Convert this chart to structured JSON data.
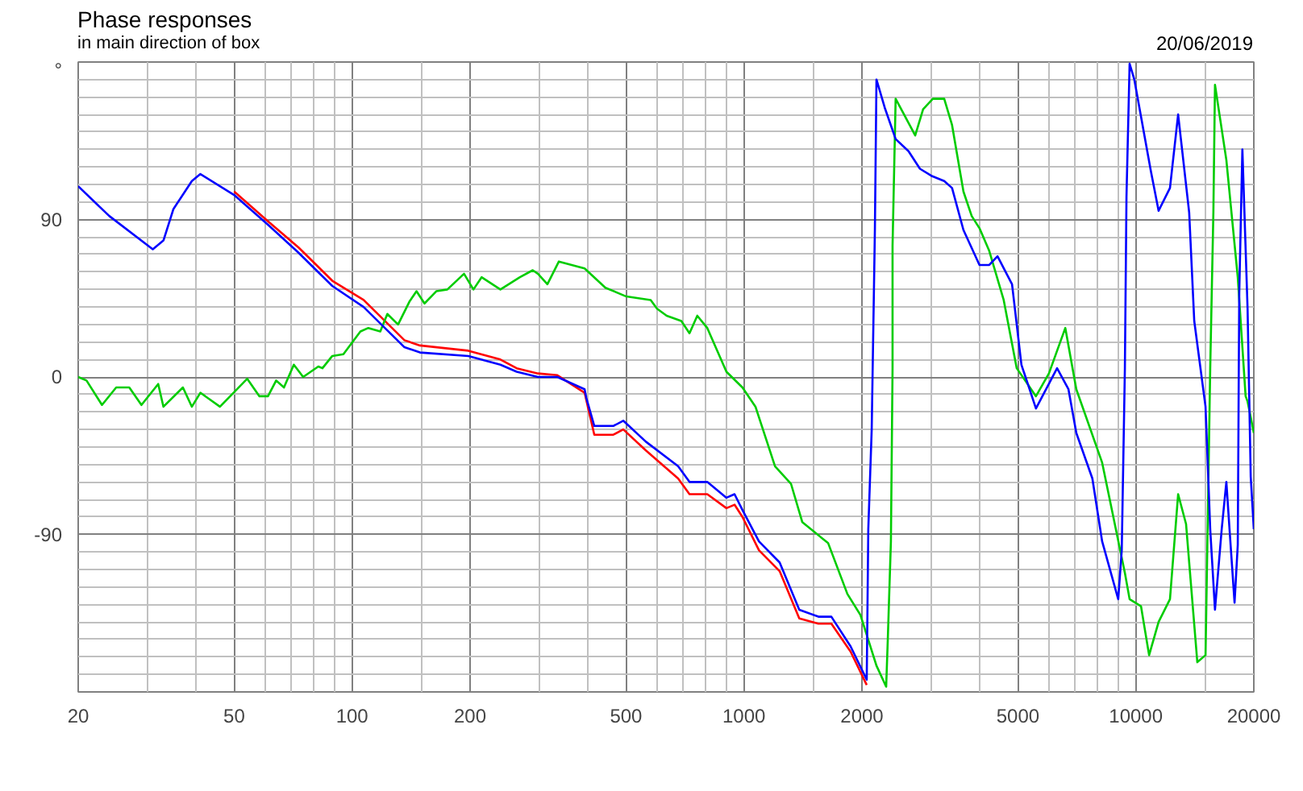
{
  "chart_data": {
    "type": "line",
    "title": "Phase responses",
    "subtitle": "in main direction of box",
    "annotations": [
      "20/06/2019"
    ],
    "xlim": [
      20,
      20000
    ],
    "ylim": [
      -180,
      180
    ],
    "xticks": [
      20,
      {
        "value": 30,
        "label": null
      },
      {
        "value": 40,
        "label": null
      },
      50,
      {
        "value": 60,
        "label": null
      },
      {
        "value": 70,
        "label": null
      },
      {
        "value": 80,
        "label": null
      },
      {
        "value": 90,
        "label": null
      },
      100,
      {
        "value": 150,
        "label": null
      },
      200,
      {
        "value": 300,
        "label": null
      },
      {
        "value": 400,
        "label": null
      },
      500,
      {
        "value": 600,
        "label": null
      },
      {
        "value": 700,
        "label": null
      },
      {
        "value": 800,
        "label": null
      },
      {
        "value": 900,
        "label": null
      },
      1000,
      {
        "value": 1500,
        "label": null
      },
      2000,
      {
        "value": 3000,
        "label": null
      },
      {
        "value": 4000,
        "label": null
      },
      5000,
      {
        "value": 6000,
        "label": null
      },
      {
        "value": 7000,
        "label": null
      },
      {
        "value": 8000,
        "label": null
      },
      {
        "value": 9000,
        "label": null
      },
      10000,
      {
        "value": 15000,
        "label": null
      },
      20000
    ],
    "yticks": [
      {
        "value": -180,
        "label": null
      },
      {
        "value": -170,
        "label": null
      },
      {
        "value": -160,
        "label": null
      },
      {
        "value": -150,
        "label": null
      },
      {
        "value": -140,
        "label": null
      },
      {
        "value": -130,
        "label": null
      },
      {
        "value": -120,
        "label": null
      },
      {
        "value": -110,
        "label": null
      },
      {
        "value": -100,
        "label": null
      },
      -90,
      {
        "value": -80,
        "label": null
      },
      {
        "value": -70,
        "label": null
      },
      {
        "value": -60,
        "label": null
      },
      {
        "value": -50,
        "label": null
      },
      {
        "value": -40,
        "label": null
      },
      {
        "value": -30,
        "label": null
      },
      {
        "value": -20,
        "label": null
      },
      {
        "value": -10,
        "label": null
      },
      0,
      {
        "value": 10,
        "label": null
      },
      {
        "value": 20,
        "label": null
      },
      {
        "value": 30,
        "label": null
      },
      {
        "value": 40,
        "label": null
      },
      {
        "value": 50,
        "label": null
      },
      {
        "value": 60,
        "label": null
      },
      {
        "value": 70,
        "label": null
      },
      {
        "value": 80,
        "label": null
      },
      90,
      {
        "value": 100,
        "label": null
      },
      {
        "value": 110,
        "label": null
      },
      {
        "value": 120,
        "label": null
      },
      {
        "value": 130,
        "label": null
      },
      {
        "value": 140,
        "label": null
      },
      {
        "value": 150,
        "label": null
      },
      {
        "value": 160,
        "label": null
      },
      {
        "value": 170,
        "label": null
      },
      {
        "value": 180,
        "label": "°"
      }
    ],
    "grid": true,
    "log": "x",
    "line_style": "solid",
    "series": [
      {
        "color": "#ff0000",
        "x": [
          50,
          61,
          73,
          89,
          107,
          136,
          149,
          198,
          239,
          263,
          298,
          334,
          392,
          415,
          464,
          492,
          562,
          679,
          726,
          806,
          902,
          946,
          991,
          1092,
          1233,
          1384,
          1548,
          1671,
          1871,
          2057
        ],
        "values": [
          106,
          89,
          74,
          55,
          44,
          21,
          18,
          15,
          10,
          5,
          2,
          1,
          -9,
          -33,
          -33,
          -30,
          -42,
          -58,
          -67,
          -67,
          -75,
          -73,
          -80,
          -99,
          -111,
          -138,
          -141,
          -141,
          -157,
          -176
        ]
      },
      {
        "color": "#00cc00",
        "x": [
          20,
          21,
          23,
          25,
          27,
          29,
          32,
          33,
          37,
          39,
          41,
          46,
          54,
          58,
          61,
          64,
          67,
          71,
          75,
          82,
          84,
          89,
          95,
          105,
          110,
          118,
          123,
          131,
          140,
          146,
          153,
          164,
          175,
          193,
          204,
          214,
          239,
          268,
          289,
          298,
          315,
          337,
          392,
          443,
          501,
          578,
          600,
          635,
          692,
          726,
          760,
          806,
          902,
          991,
          1070,
          1200,
          1318,
          1409,
          1640,
          1836,
          1982,
          2178,
          2306,
          2328,
          2371,
          2394,
          2394,
          2438,
          2735,
          2865,
          3034,
          3243,
          3396,
          3631,
          3811,
          3990,
          4226,
          4600,
          4966,
          5560,
          6000,
          6607,
          7048,
          8204,
          9376,
          9640,
          10307,
          10810,
          11430,
          12220,
          12820,
          13430,
          14350,
          15060,
          15480,
          15770,
          15920,
          17020,
          18200,
          19060,
          19280,
          20000
        ],
        "values": [
          0,
          -2,
          -16,
          -6,
          -6,
          -16,
          -4,
          -17,
          -6,
          -17,
          -9,
          -17,
          -1,
          -11,
          -11,
          -2,
          -6,
          7,
          0,
          6,
          5,
          12,
          13,
          26,
          28,
          26,
          36,
          30,
          43,
          49,
          42,
          49,
          50,
          59,
          50,
          57,
          50,
          57,
          61,
          59,
          53,
          66,
          62,
          51,
          46,
          44,
          39,
          35,
          32,
          25,
          35,
          28,
          3,
          -6,
          -17,
          -51,
          -61,
          -83,
          -95,
          -124,
          -136,
          -165,
          -177,
          -150,
          -94,
          5,
          75,
          159,
          138,
          153,
          159,
          159,
          144,
          106,
          92,
          85,
          72,
          44,
          5,
          -11,
          2,
          28,
          -7,
          -49,
          -112,
          -127,
          -131,
          -159,
          -140,
          -127,
          -67,
          -84,
          -163,
          -159,
          5,
          94,
          167,
          124,
          57,
          -11,
          -14,
          -32
        ]
      },
      {
        "color": "#0000ff",
        "x": [
          20,
          24,
          31,
          33,
          35,
          39,
          41,
          50,
          61,
          73,
          89,
          107,
          136,
          149,
          198,
          239,
          263,
          298,
          334,
          392,
          396,
          415,
          464,
          492,
          562,
          679,
          726,
          806,
          902,
          946,
          991,
          1092,
          1233,
          1384,
          1548,
          1671,
          1871,
          2057,
          2076,
          2118,
          2158,
          2178,
          2286,
          2438,
          2630,
          2812,
          3006,
          3243,
          3396,
          3631,
          3990,
          4226,
          4436,
          4831,
          5105,
          5560,
          6295,
          6730,
          7048,
          7745,
          8204,
          9016,
          9205,
          9376,
          9464,
          9640,
          9910,
          10916,
          11430,
          12220,
          12820,
          13680,
          14094,
          15060,
          15480,
          15920,
          16560,
          17020,
          17340,
          17860,
          18200,
          18360,
          18700,
          19280,
          19640,
          20000
        ],
        "values": [
          109,
          92,
          73,
          78,
          96,
          112,
          116,
          104,
          87,
          71,
          52,
          40,
          17,
          14,
          12,
          7,
          3,
          0,
          0,
          -7,
          -12,
          -28,
          -28,
          -25,
          -37,
          -51,
          -60,
          -60,
          -69,
          -67,
          -76,
          -94,
          -106,
          -133,
          -137,
          -137,
          -154,
          -173,
          -87,
          -30,
          84,
          170,
          154,
          136,
          129,
          119,
          115,
          112,
          108,
          84,
          64,
          64,
          69,
          53,
          7,
          -18,
          5,
          -7,
          -32,
          -58,
          -94,
          -127,
          -99,
          5,
          103,
          179,
          170,
          118,
          95,
          108,
          150,
          94,
          32,
          -17,
          -87,
          -133,
          -87,
          -60,
          -87,
          -129,
          -96,
          48,
          130,
          39,
          -57,
          -87
        ]
      }
    ]
  }
}
